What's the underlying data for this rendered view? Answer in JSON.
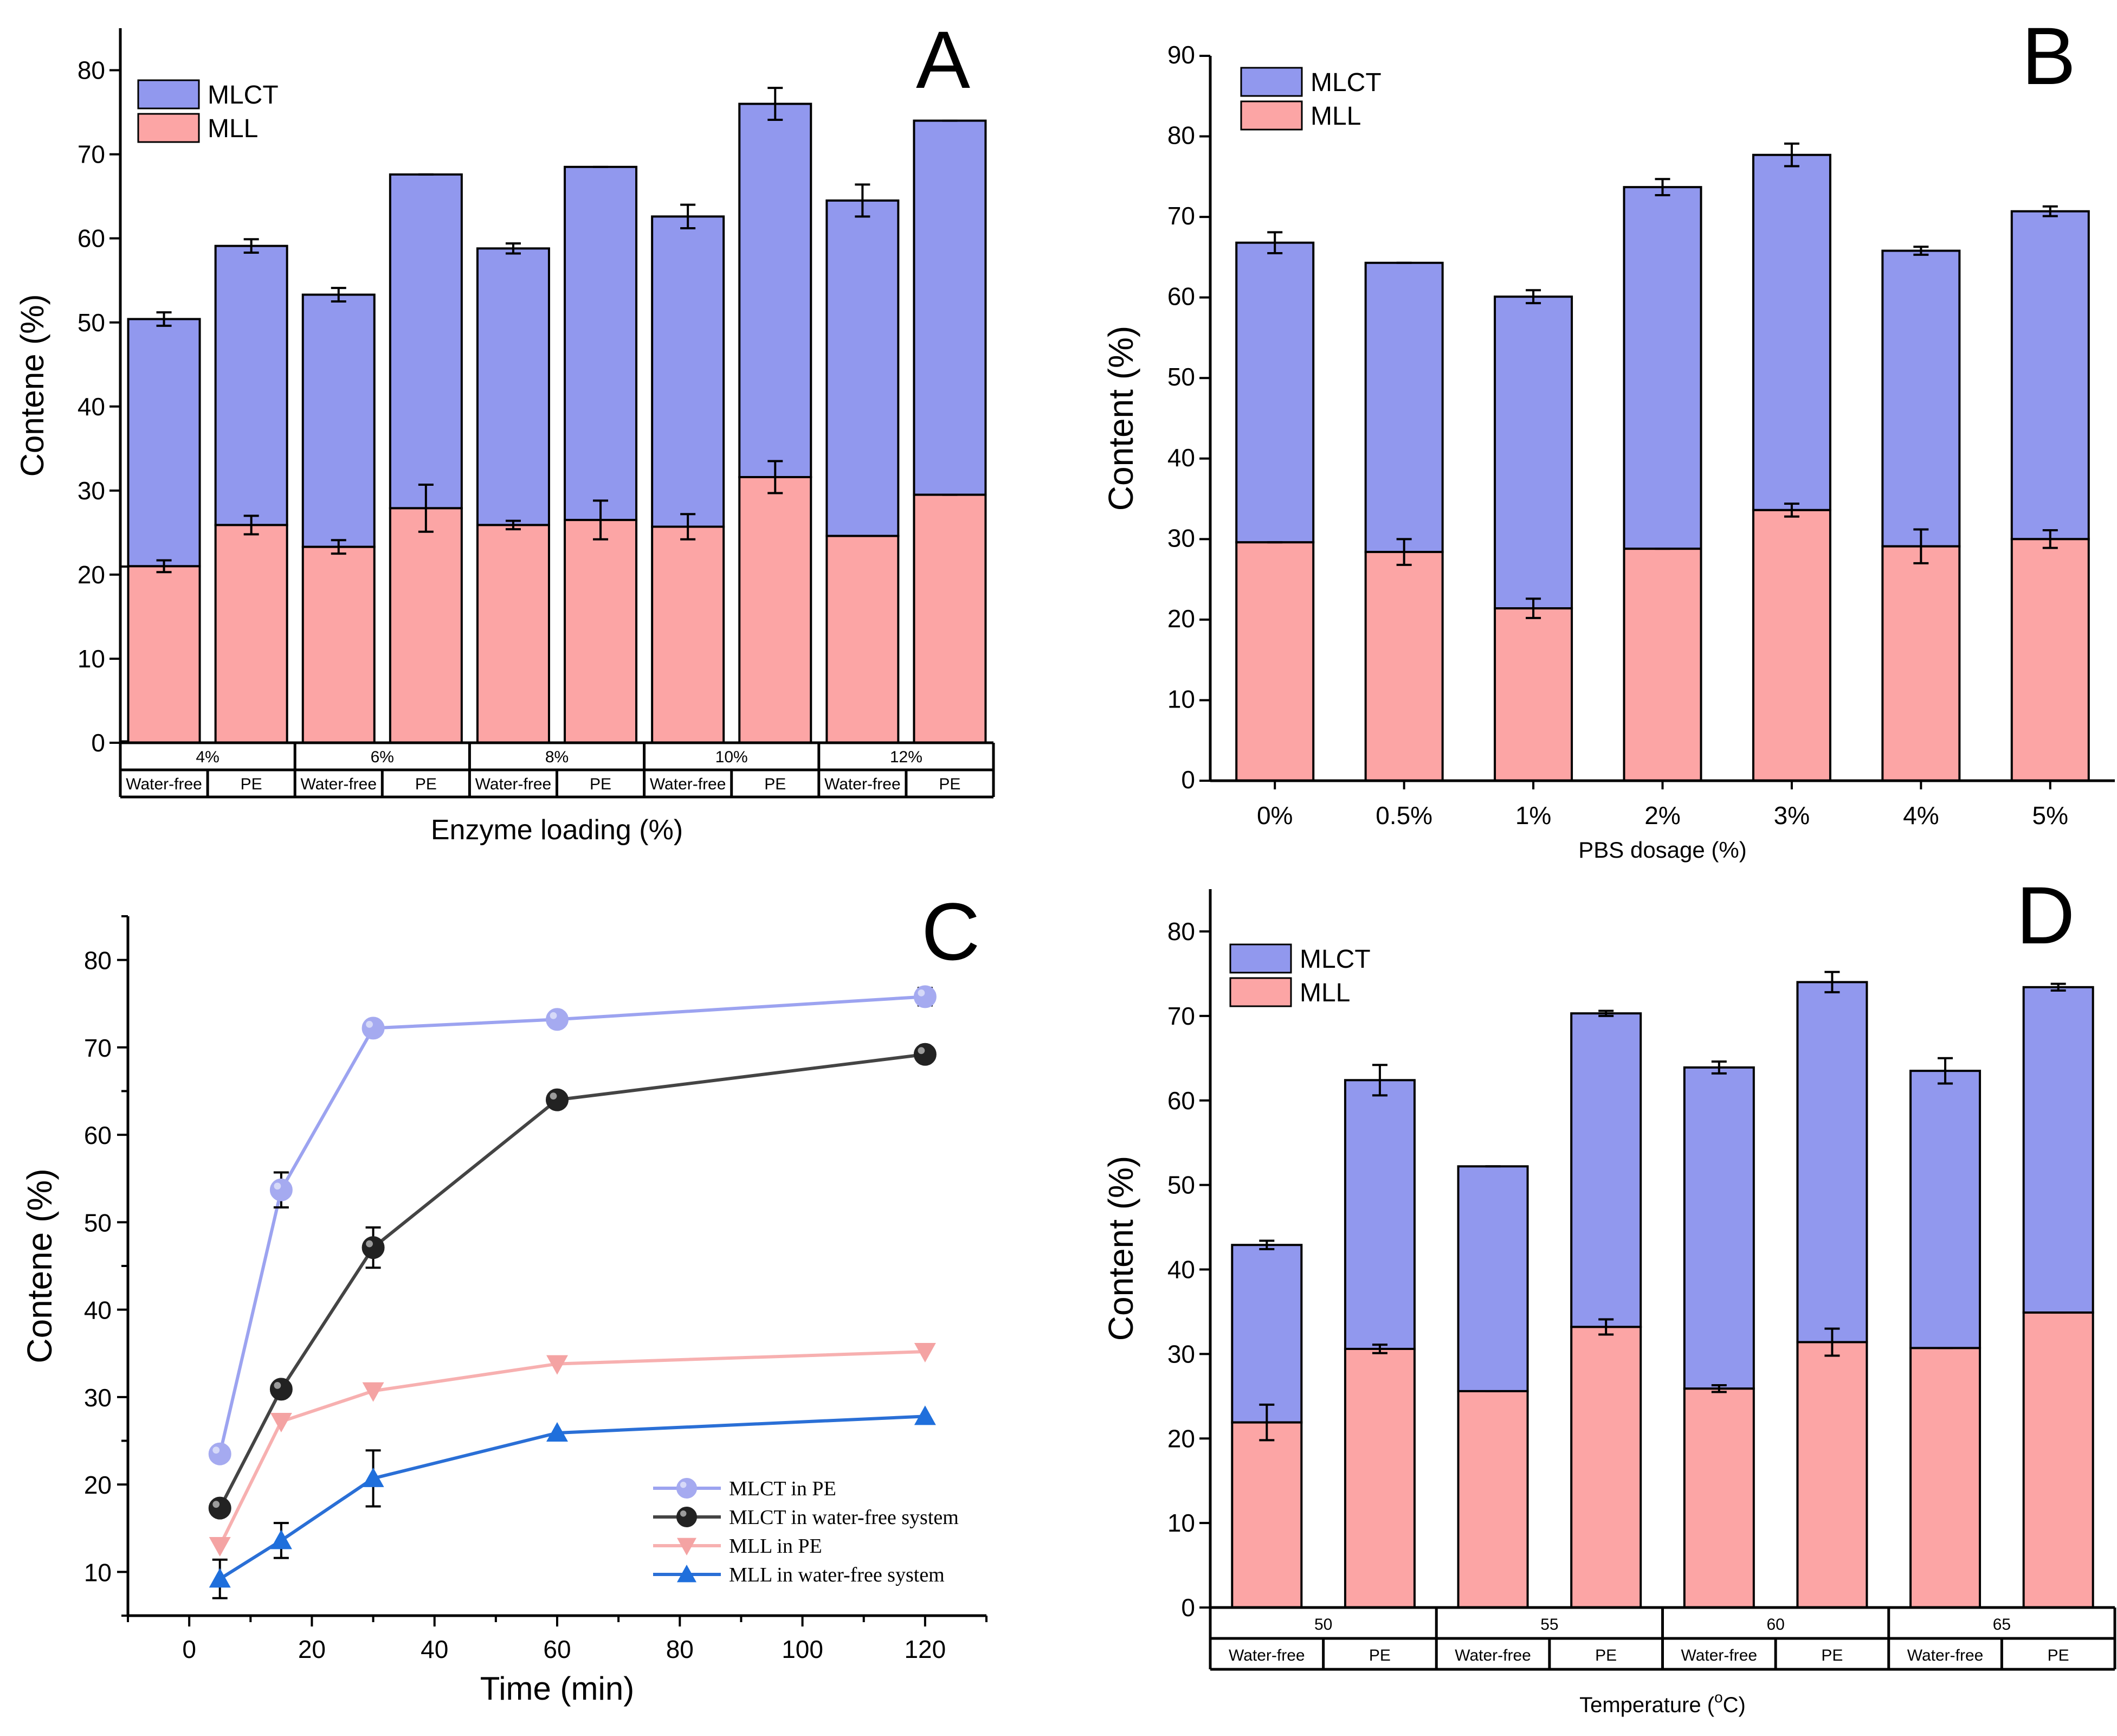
{
  "colors": {
    "mlct": "#9198ee",
    "mll": "#fca5a5",
    "edge": "#000000",
    "c_mlct_pe": "#a5aaf0",
    "c_mlct_wf": "#222222",
    "c_mll_pe": "#f4a3a3",
    "c_mll_wf": "#1f6fdc",
    "c_line_mlct_pe": "#9ca3f0",
    "c_line_mlct_wf": "#444444",
    "c_line_mll_pe": "#f7b0b0",
    "c_line_mll_wf": "#2a6fd6"
  },
  "chart_data": [
    {
      "panel": "A",
      "type": "bar",
      "ylabel": "Contene (%)",
      "xlabel": "Enzyme loading (%)",
      "ylim": [
        0,
        85
      ],
      "yticks": [
        0,
        10,
        20,
        30,
        40,
        50,
        60,
        70,
        80
      ],
      "groups": [
        "4%",
        "6%",
        "8%",
        "10%",
        "12%"
      ],
      "subcategories": [
        "Water-free",
        "PE",
        "Water-free",
        "PE",
        "Water-free",
        "PE",
        "Water-free",
        "PE",
        "Water-free",
        "PE"
      ],
      "series": [
        {
          "name": "MLL",
          "values": [
            21.0,
            25.9,
            23.3,
            27.9,
            25.9,
            26.5,
            25.7,
            31.6,
            24.6,
            29.5
          ],
          "errors": [
            0.7,
            1.1,
            0.8,
            2.8,
            0.5,
            2.3,
            1.5,
            1.9,
            0.0,
            0.0
          ]
        },
        {
          "name": "MLCT",
          "total": [
            50.4,
            59.1,
            53.3,
            67.6,
            58.8,
            68.5,
            62.6,
            76.0,
            64.5,
            74.0
          ],
          "errors": [
            0.8,
            0.8,
            0.8,
            0.0,
            0.6,
            0.0,
            1.4,
            1.9,
            1.9,
            0.0
          ]
        }
      ],
      "legend": [
        "MLCT",
        "MLL"
      ]
    },
    {
      "panel": "B",
      "type": "bar",
      "ylabel": "Content (%)",
      "xlabel": "PBS dosage (%)",
      "ylim": [
        0,
        90
      ],
      "yticks": [
        0,
        10,
        20,
        30,
        40,
        50,
        60,
        70,
        80,
        90
      ],
      "categories": [
        "0%",
        "0.5%",
        "1%",
        "2%",
        "3%",
        "4%",
        "5%"
      ],
      "series": [
        {
          "name": "MLL",
          "values": [
            29.6,
            28.4,
            21.4,
            28.8,
            33.6,
            29.1,
            30.0
          ],
          "errors": [
            0.0,
            1.6,
            1.2,
            0.0,
            0.8,
            2.1,
            1.1
          ]
        },
        {
          "name": "MLCT",
          "total": [
            66.8,
            64.3,
            60.1,
            73.7,
            77.7,
            65.8,
            70.7
          ],
          "errors": [
            1.3,
            0.0,
            0.8,
            1.0,
            1.4,
            0.5,
            0.6
          ]
        }
      ],
      "legend": [
        "MLCT",
        "MLL"
      ]
    },
    {
      "panel": "C",
      "type": "line",
      "ylabel": "Contene (%)",
      "xlabel": "Time (min)",
      "xlim": [
        -10,
        130
      ],
      "ylim": [
        5,
        85
      ],
      "xticks": [
        0,
        20,
        40,
        60,
        80,
        100,
        120
      ],
      "yticks": [
        10,
        20,
        30,
        40,
        50,
        60,
        70,
        80
      ],
      "x": [
        5,
        15,
        30,
        60,
        120
      ],
      "series": [
        {
          "name": "MLCT in PE",
          "values": [
            23.5,
            53.7,
            72.2,
            73.2,
            75.8
          ],
          "errors": [
            0.0,
            2.0,
            0.0,
            0.0,
            1.0
          ]
        },
        {
          "name": "MLCT in water-free system",
          "values": [
            17.3,
            30.9,
            47.1,
            64.0,
            69.2
          ],
          "errors": [
            0.0,
            0.0,
            2.3,
            0.0,
            0.0
          ]
        },
        {
          "name": "MLL  in PE",
          "values": [
            13.0,
            27.2,
            30.7,
            33.8,
            35.2
          ],
          "errors": [
            0.0,
            0.0,
            0.0,
            0.0,
            0.0
          ]
        },
        {
          "name": "MLL  in water-free system",
          "values": [
            9.2,
            13.6,
            20.7,
            25.9,
            27.8
          ],
          "errors": [
            2.2,
            2.0,
            3.2,
            0.0,
            0.0
          ]
        }
      ]
    },
    {
      "panel": "D",
      "type": "bar",
      "ylabel": "Content (%)",
      "xlabel": "Temperature (",
      "xlabel_sup": "o",
      "xlabel_unit": "C)",
      "ylim": [
        0,
        85
      ],
      "yticks": [
        0,
        10,
        20,
        30,
        40,
        50,
        60,
        70,
        80
      ],
      "groups": [
        "50",
        "55",
        "60",
        "65"
      ],
      "subcategories": [
        "Water-free",
        "PE",
        "Water-free",
        "PE",
        "Water-free",
        "PE",
        "Water-free",
        "PE"
      ],
      "series": [
        {
          "name": "MLL",
          "values": [
            21.9,
            30.6,
            25.6,
            33.2,
            25.9,
            31.4,
            30.7,
            34.9
          ],
          "errors": [
            2.1,
            0.5,
            0.0,
            0.9,
            0.4,
            1.6,
            0.0,
            0.0
          ]
        },
        {
          "name": "MLCT",
          "total": [
            42.9,
            62.4,
            52.2,
            70.3,
            63.9,
            74.0,
            63.5,
            73.4
          ],
          "errors": [
            0.5,
            1.8,
            0.0,
            0.3,
            0.7,
            1.2,
            1.5,
            0.4
          ]
        }
      ],
      "legend": [
        "MLCT",
        "MLL"
      ]
    }
  ]
}
